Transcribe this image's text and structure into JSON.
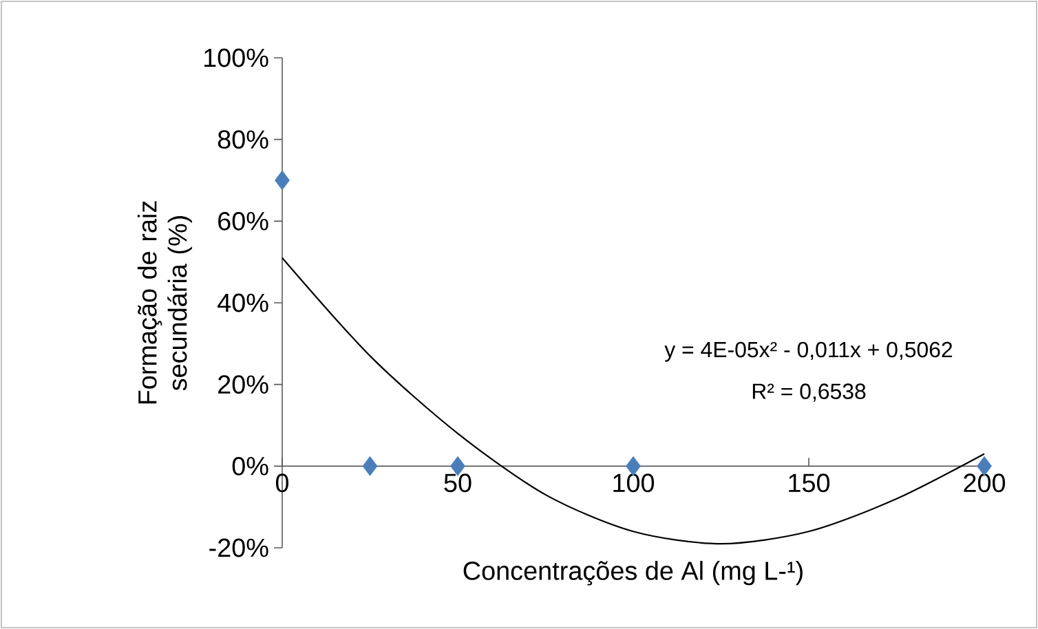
{
  "chart_data": {
    "type": "scatter",
    "xlabel": "Concentrações de Al (mg L-¹)",
    "ylabel": "Formação de raiz secundária (%)",
    "xlim": [
      0,
      200
    ],
    "xticks": [
      0,
      50,
      100,
      150,
      200
    ],
    "ylim": [
      -20,
      100
    ],
    "yticks": [
      {
        "value": -20,
        "label": "-20%"
      },
      {
        "value": 0,
        "label": "0%"
      },
      {
        "value": 20,
        "label": "20%"
      },
      {
        "value": 40,
        "label": "40%"
      },
      {
        "value": 60,
        "label": "60%"
      },
      {
        "value": 80,
        "label": "80%"
      },
      {
        "value": 100,
        "label": "100%"
      }
    ],
    "marker": "diamond",
    "series": [
      {
        "color": "#4a7ebb",
        "x": [
          0,
          25,
          50,
          100,
          200
        ],
        "values": [
          70,
          0,
          0,
          0,
          0
        ]
      },
      {
        "type": "line",
        "color": "#000000",
        "marker": "none",
        "x": [
          0,
          25,
          50,
          75,
          100,
          125,
          150,
          175,
          200
        ],
        "values": [
          51,
          27,
          8,
          -7,
          -16,
          -19,
          -16,
          -8,
          3
        ]
      }
    ],
    "annotations": [
      "y = 4E-05x² - 0,011x + 0,5062",
      "R² = 0,6538"
    ]
  }
}
